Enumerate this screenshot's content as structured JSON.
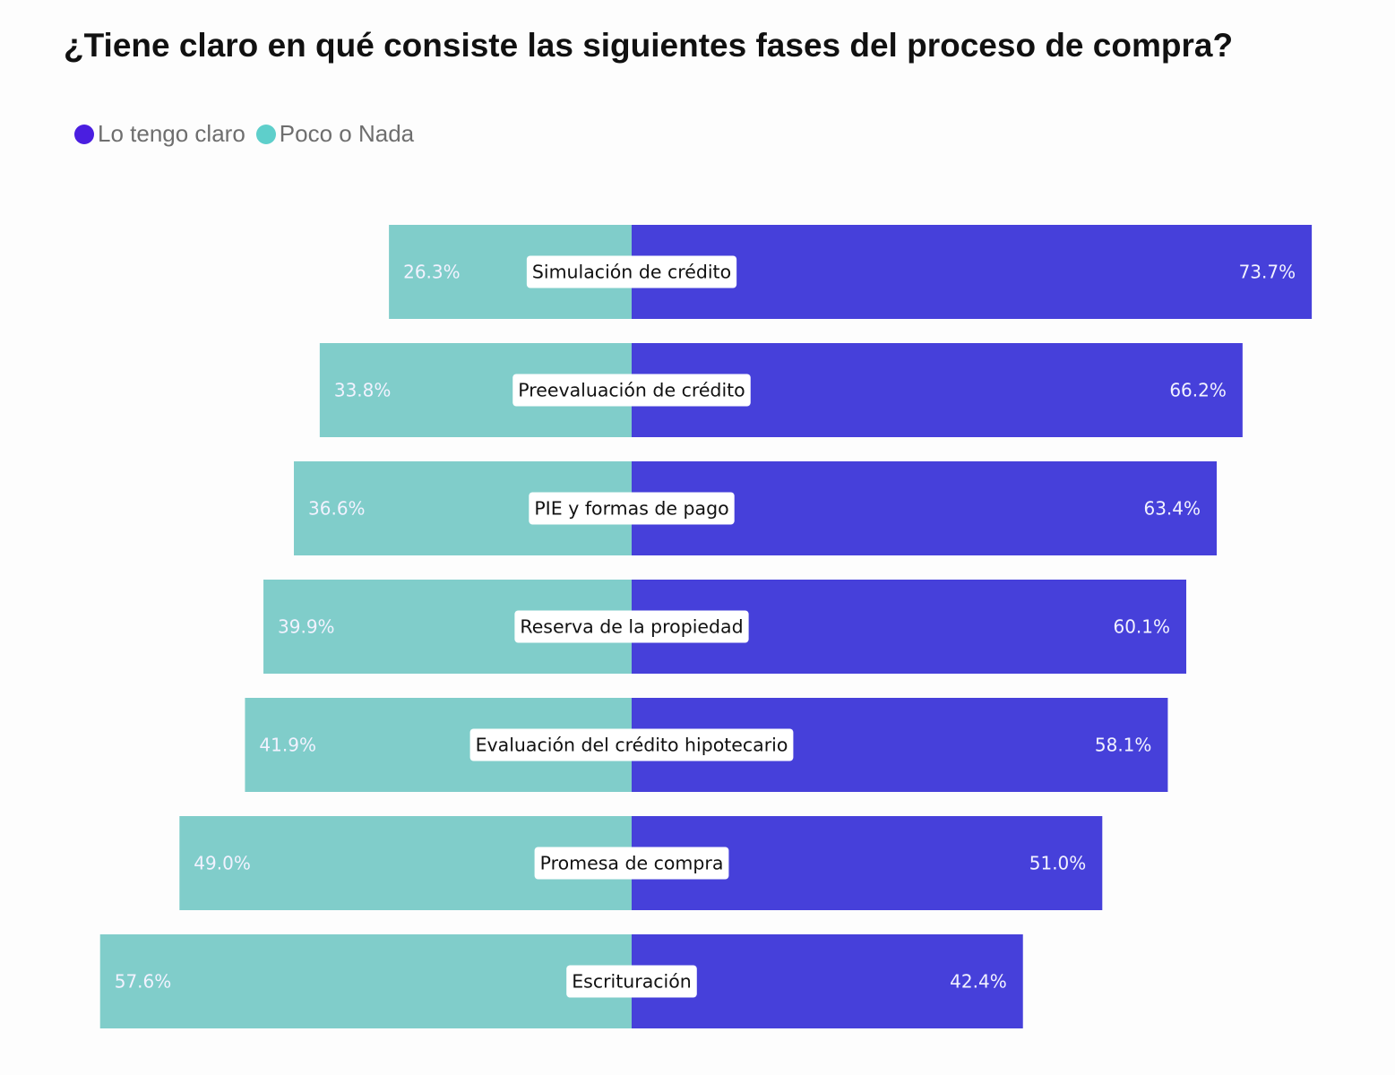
{
  "chart_data": {
    "type": "bar",
    "orientation": "horizontal-diverging",
    "title": "¿Tiene claro en qué consiste las siguientes fases del proceso de compra?",
    "xlabel": "",
    "ylabel": "",
    "grid": false,
    "legend_position": "top-left",
    "categories": [
      "Simulación de crédito",
      "Preevaluación de crédito",
      "PIE y formas de pago",
      "Reserva de la propiedad",
      "Evaluación del crédito hipotecario",
      "Promesa de compra",
      "Escrituración"
    ],
    "series": [
      {
        "name": "Lo tengo claro",
        "color": "#4640da",
        "legend_color": "#4a1ee0",
        "side": "right",
        "values": [
          73.7,
          66.2,
          63.4,
          60.1,
          58.1,
          51.0,
          42.4
        ],
        "labels": [
          "73.7%",
          "66.2%",
          "63.4%",
          "60.1%",
          "58.1%",
          "51.0%",
          "42.4%"
        ]
      },
      {
        "name": "Poco o Nada",
        "color": "#80cdca",
        "legend_color": "#5ecfcb",
        "side": "left",
        "values": [
          26.3,
          33.8,
          36.6,
          39.9,
          41.9,
          49.0,
          57.6
        ],
        "labels": [
          "26.3%",
          "33.8%",
          "36.6%",
          "39.9%",
          "41.9%",
          "49.0%",
          "57.6%"
        ]
      }
    ],
    "unit": "%"
  }
}
